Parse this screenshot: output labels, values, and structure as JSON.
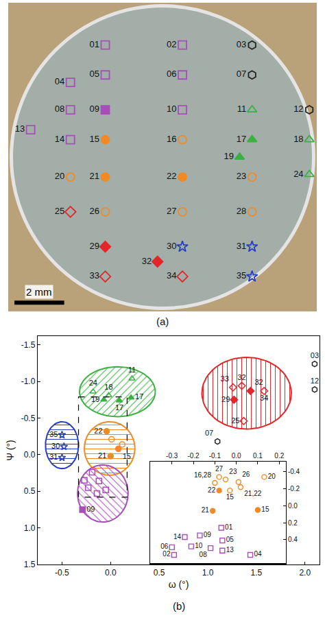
{
  "chart_data": [
    {
      "type": "scatter",
      "title": "(a)",
      "tick_labels": false,
      "grid": false,
      "xlim": [
        -6.2,
        6.2
      ],
      "ylim": [
        -6.2,
        6.2
      ],
      "scale_bar": {
        "label": "2 mm",
        "length": 2
      },
      "series": [
        {
          "color": "#a64fb8",
          "marker": "square-open",
          "labels": [
            "01",
            "02",
            "04",
            "05",
            "06",
            "08",
            "10",
            "13",
            "14"
          ],
          "x": [
            -2.3,
            0.8,
            -3.7,
            -2.3,
            0.8,
            -3.7,
            0.8,
            -5.3,
            -3.7
          ],
          "y": [
            4.5,
            4.5,
            3.0,
            3.3,
            3.3,
            1.9,
            1.9,
            1.1,
            0.7
          ]
        },
        {
          "color": "#a64fb8",
          "marker": "square",
          "labels": [
            "09"
          ],
          "x": [
            -2.3
          ],
          "y": [
            1.9
          ]
        },
        {
          "color": "#222222",
          "marker": "hexagon-open",
          "labels": [
            "03",
            "07",
            "12"
          ],
          "x": [
            3.6,
            3.6,
            5.9
          ],
          "y": [
            4.5,
            3.3,
            1.9
          ]
        },
        {
          "color": "#3cb043",
          "marker": "triangle-up-open",
          "labels": [
            "11",
            "18",
            "24"
          ],
          "x": [
            3.6,
            5.9,
            5.9
          ],
          "y": [
            1.9,
            0.7,
            -0.7
          ]
        },
        {
          "color": "#3cb043",
          "marker": "triangle-up",
          "labels": [
            "17",
            "19"
          ],
          "x": [
            3.6,
            3.1
          ],
          "y": [
            0.7,
            0.0
          ]
        },
        {
          "color": "#f08a24",
          "marker": "circle",
          "labels": [
            "15",
            "21",
            "22"
          ],
          "x": [
            -2.3,
            -2.3,
            0.8
          ],
          "y": [
            0.7,
            -0.8,
            -0.8
          ]
        },
        {
          "color": "#f08a24",
          "marker": "circle-open",
          "labels": [
            "16",
            "20",
            "23",
            "26",
            "27",
            "28"
          ],
          "x": [
            0.8,
            -3.7,
            3.6,
            -2.3,
            0.8,
            3.6
          ],
          "y": [
            0.7,
            -0.8,
            -0.8,
            -2.2,
            -2.2,
            -2.2
          ]
        },
        {
          "color": "#e3262a",
          "marker": "diamond",
          "labels": [
            "29",
            "32"
          ],
          "x": [
            -2.3,
            -0.2
          ],
          "y": [
            -3.6,
            -4.2
          ]
        },
        {
          "color": "#e3262a",
          "marker": "diamond-open",
          "labels": [
            "25",
            "33",
            "34"
          ],
          "x": [
            -3.7,
            -2.3,
            0.8
          ],
          "y": [
            -2.2,
            -4.8,
            -4.8
          ]
        },
        {
          "color": "#2a3fbf",
          "marker": "star-open",
          "labels": [
            "30",
            "31",
            "35"
          ],
          "x": [
            0.8,
            3.6,
            3.6
          ],
          "y": [
            -3.6,
            -3.6,
            -4.8
          ]
        }
      ]
    },
    {
      "type": "scatter",
      "title": "(b)",
      "x_label": "ω (°)",
      "y_label": "Ψ (°)",
      "grid": false,
      "xlim": [
        -0.75,
        2.15
      ],
      "ylim": [
        1.5,
        -1.62
      ],
      "xticks": [
        -0.5,
        {
          "value": 0,
          "label": "0.0"
        },
        0.5,
        {
          "value": 1,
          "label": "1.0"
        },
        1.5,
        {
          "value": 2,
          "label": "2.0"
        }
      ],
      "yticks": [
        -1.5,
        {
          "value": -1,
          "label": "-1.0"
        },
        -0.5,
        {
          "value": 0,
          "label": "0.0"
        },
        0.5,
        {
          "value": 1,
          "label": "1.0"
        },
        1.5
      ],
      "ellipses": [
        {
          "color": "#3cb043",
          "x": [
            -0.32,
            0.46
          ],
          "y": [
            -1.2,
            -0.52
          ]
        },
        {
          "color": "#f08a24",
          "x": [
            -0.27,
            0.25
          ],
          "y": [
            -0.45,
            0.28
          ]
        },
        {
          "color": "#a64fb8",
          "x": [
            -0.34,
            0.18
          ],
          "y": [
            0.14,
            0.92
          ]
        },
        {
          "color": "#2a3fbf",
          "x": [
            -0.67,
            -0.33
          ],
          "y": [
            -0.45,
            0.19
          ]
        },
        {
          "color": "#e3262a",
          "x": [
            0.94,
            1.86
          ],
          "y": [
            -1.33,
            -0.35
          ]
        }
      ],
      "zoom_box": {
        "x": [
          -0.33,
          0.17
        ],
        "y": [
          -0.79,
          0.58
        ]
      },
      "series": [
        {
          "color": "#a64fb8",
          "marker": "square-open",
          "labels": [
            null,
            null,
            null,
            null,
            null,
            null
          ],
          "x": [
            -0.19,
            -0.27,
            -0.12,
            -0.23,
            -0.05,
            -0.14
          ],
          "y": [
            0.24,
            0.35,
            0.36,
            0.45,
            0.48,
            0.53
          ]
        },
        {
          "color": "#a64fb8",
          "marker": "square",
          "labels": [
            "09"
          ],
          "x": [
            -0.29
          ],
          "y": [
            0.75
          ]
        },
        {
          "color": "#222222",
          "marker": "hexagon-open",
          "labels": [
            "03",
            "12",
            "07"
          ],
          "x": [
            2.1,
            2.1,
            1.1
          ],
          "y": [
            -1.24,
            -0.89,
            -0.18
          ]
        },
        {
          "color": "#3cb043",
          "marker": "triangle-up-open",
          "labels": [
            "24",
            "11",
            "18"
          ],
          "x": [
            -0.18,
            0.22,
            -0.02
          ],
          "y": [
            -0.86,
            -1.04,
            -0.81
          ]
        },
        {
          "color": "#3cb043",
          "marker": "triangle-up",
          "labels": [
            "19",
            "17",
            "17"
          ],
          "x": [
            -0.07,
            0.09,
            0.21
          ],
          "y": [
            -0.75,
            -0.74,
            -0.78
          ]
        },
        {
          "color": "#2a3fbf",
          "marker": "star-open",
          "labels": [
            "35",
            "30",
            "31"
          ],
          "x": [
            -0.5,
            -0.48,
            -0.5
          ],
          "y": [
            -0.27,
            -0.11,
            0.04
          ]
        },
        {
          "color": "#f08a24",
          "marker": "circle-open",
          "labels": [
            null,
            null
          ],
          "x": [
            0.01,
            0.12
          ],
          "y": [
            -0.21,
            -0.14
          ]
        },
        {
          "color": "#f08a24",
          "marker": "circle",
          "labels": [
            "22",
            "15",
            "21"
          ],
          "x": [
            -0.04,
            0.08,
            0.0
          ],
          "y": [
            -0.32,
            -0.08,
            0.02
          ]
        },
        {
          "color": "#e3262a",
          "marker": "diamond-open",
          "labels": [
            "33",
            "32",
            "34",
            "25"
          ],
          "x": [
            1.26,
            1.35,
            1.58,
            1.37
          ],
          "y": [
            -0.92,
            -0.94,
            -0.87,
            -0.46
          ]
        },
        {
          "color": "#e3262a",
          "marker": "diamond",
          "labels": [
            "32",
            "29"
          ],
          "x": [
            1.44,
            1.27
          ],
          "y": [
            -0.87,
            -0.75
          ]
        }
      ],
      "inset": {
        "xlim": [
          -0.4,
          0.23
        ],
        "ylim": [
          0.68,
          -0.52
        ],
        "xticks": [
          -0.3,
          -0.2,
          -0.1,
          {
            "value": 0,
            "label": "0.0"
          },
          0.1,
          0.2
        ],
        "yticks": [
          -0.4,
          -0.2,
          {
            "value": 0,
            "label": "0.0"
          },
          0.2,
          0.4
        ],
        "series": [
          {
            "color": "#f08a24",
            "marker": "circle-open",
            "labels": [
              "27",
              "16,28",
              "23",
              "26",
              "20",
              "21,22",
              "15"
            ],
            "x": [
              -0.08,
              -0.1,
              -0.05,
              0.01,
              0.13,
              0.02,
              -0.03
            ],
            "y": [
              -0.34,
              -0.27,
              -0.31,
              -0.28,
              -0.34,
              -0.22,
              -0.18
            ]
          },
          {
            "color": "#f08a24",
            "marker": "circle",
            "labels": [
              "22",
              "21",
              "15"
            ],
            "x": [
              -0.08,
              -0.11,
              0.1
            ],
            "y": [
              -0.18,
              0.06,
              0.05
            ]
          },
          {
            "color": "#a64fb8",
            "marker": "square-open",
            "labels": [
              "01",
              "05",
              "13",
              "08",
              "04",
              "14",
              "09",
              "06",
              "10",
              "02"
            ],
            "x": [
              -0.07,
              -0.065,
              -0.065,
              -0.12,
              0.065,
              -0.24,
              -0.17,
              -0.3,
              -0.21,
              -0.29
            ],
            "y": [
              0.26,
              0.41,
              0.53,
              0.5,
              0.58,
              0.37,
              0.35,
              0.49,
              0.48,
              0.58
            ]
          }
        ]
      }
    }
  ]
}
